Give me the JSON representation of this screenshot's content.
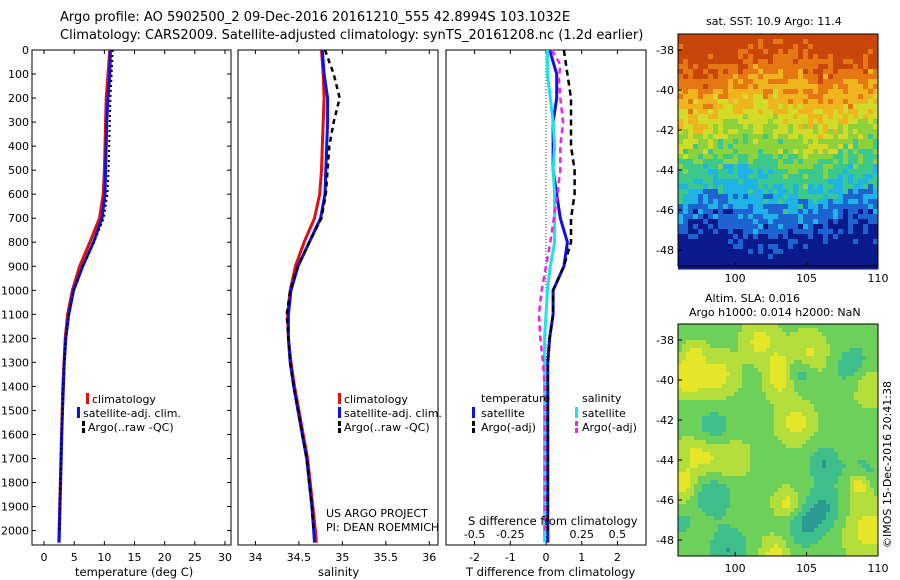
{
  "header": {
    "title_line1": "Argo profile: AO 5902500_2 09-Dec-2016 20161210_555 42.8994S 103.1032E",
    "title_line2": "Climatology: CARS2009. Satellite-adjusted climatology: synTS_20161208.nc (1.2d earlier)"
  },
  "map_top": {
    "title": "sat. SST: 10.9 Argo: 11.4",
    "yticks": [
      "-38",
      "-40",
      "-42",
      "-44",
      "-46",
      "-48"
    ],
    "xticks": [
      "100",
      "105",
      "110"
    ],
    "colors": [
      "#0a1a8c",
      "#1e64d0",
      "#20b4e6",
      "#3cc88c",
      "#8cd23c",
      "#d2dc28",
      "#f0b41e",
      "#e67814",
      "#c8460a"
    ]
  },
  "map_bottom": {
    "title_line1": "Altim. SLA: 0.016",
    "title_line2": "Argo h1000: 0.014 h2000: NaN",
    "yticks": [
      "-38",
      "-40",
      "-42",
      "-44",
      "-46",
      "-48"
    ],
    "xticks": [
      "100",
      "105",
      "110"
    ],
    "colors": [
      "#2e9a94",
      "#3fbf8c",
      "#6cd05a",
      "#b4de3c",
      "#e6e628"
    ]
  },
  "side_label": "©IMOS 15-Dec-2016 20:41:38",
  "credit": {
    "line1": "US ARGO PROJECT",
    "line2": "PI: DEAN ROEMMICH"
  },
  "colors": {
    "climatology": "#e01010",
    "satellite": "#1010e0",
    "argo": "#000000",
    "satellite_s": "#20e0e8",
    "argo_s": "#ee20ee"
  },
  "chart_data": [
    {
      "type": "line",
      "panel": "temperature",
      "xlabel": "temperature (deg C)",
      "xticks": [
        "0",
        "5",
        "10",
        "15",
        "20",
        "25",
        "30"
      ],
      "xlim": [
        -2,
        31
      ],
      "yticks": [
        "0",
        "100",
        "200",
        "300",
        "400",
        "500",
        "600",
        "700",
        "800",
        "900",
        "1000",
        "1100",
        "1200",
        "1300",
        "1400",
        "1500",
        "1600",
        "1700",
        "1800",
        "1900",
        "2000"
      ],
      "ylim": [
        0,
        2060
      ],
      "legend": [
        "climatology",
        "satellite-adj. clim.",
        "Argo(..raw -QC)"
      ],
      "series": [
        {
          "name": "climatology",
          "depth": [
            0,
            100,
            200,
            300,
            400,
            500,
            600,
            700,
            800,
            900,
            1000,
            1100,
            1200,
            1300,
            1400,
            1500,
            1600,
            1700,
            1800,
            1900,
            2000,
            2050
          ],
          "values": [
            10.9,
            10.6,
            10.3,
            10.2,
            10.1,
            10.0,
            9.8,
            9.2,
            7.6,
            5.9,
            4.7,
            3.9,
            3.5,
            3.3,
            3.1,
            3.0,
            2.9,
            2.8,
            2.7,
            2.6,
            2.5,
            2.45
          ]
        },
        {
          "name": "satellite-adj. clim.",
          "depth": [
            0,
            100,
            200,
            300,
            400,
            500,
            600,
            700,
            800,
            900,
            1000,
            1100,
            1200,
            1300,
            1400,
            1500,
            1600,
            1700,
            1800,
            1900,
            2000,
            2050
          ],
          "values": [
            11.0,
            10.9,
            10.6,
            10.4,
            10.3,
            10.2,
            10.1,
            9.6,
            8.2,
            6.4,
            4.9,
            4.1,
            3.6,
            3.35,
            3.2,
            3.05,
            2.95,
            2.85,
            2.75,
            2.65,
            2.55,
            2.5
          ]
        },
        {
          "name": "Argo(..raw -QC)",
          "depth": [
            0,
            100,
            200,
            300,
            400,
            500,
            600,
            700,
            800,
            900,
            1000,
            1100,
            1200,
            1300,
            1400,
            1500,
            1600,
            1700,
            1800,
            1900,
            2000
          ],
          "values": [
            11.4,
            11.2,
            11.0,
            10.9,
            10.8,
            10.7,
            10.5,
            9.9,
            8.3,
            6.4,
            4.9,
            4.1,
            3.6,
            3.35,
            3.2,
            3.05,
            2.95,
            2.85,
            2.75,
            2.65,
            2.55
          ]
        }
      ]
    },
    {
      "type": "line",
      "panel": "salinity",
      "xlabel": "salinity",
      "xticks": [
        "34",
        "34.5",
        "35",
        "35.5",
        "36"
      ],
      "xlim": [
        33.8,
        36.1
      ],
      "yticks": [],
      "ylim": [
        0,
        2060
      ],
      "legend": [
        "climatology",
        "satellite-adj. clim.",
        "Argo(..raw -QC)"
      ],
      "series": [
        {
          "name": "climatology",
          "depth": [
            0,
            100,
            200,
            300,
            400,
            500,
            600,
            700,
            800,
            900,
            1000,
            1100,
            1200,
            1300,
            1400,
            1500,
            1600,
            1700,
            1800,
            1900,
            2000,
            2050
          ],
          "values": [
            34.76,
            34.78,
            34.79,
            34.78,
            34.77,
            34.76,
            34.74,
            34.68,
            34.56,
            34.46,
            34.4,
            34.37,
            34.38,
            34.41,
            34.45,
            34.5,
            34.55,
            34.6,
            34.63,
            34.66,
            34.69,
            34.7
          ]
        },
        {
          "name": "satellite-adj. clim.",
          "depth": [
            0,
            100,
            200,
            300,
            400,
            500,
            600,
            700,
            800,
            900,
            1000,
            1100,
            1200,
            1300,
            1400,
            1500,
            1600,
            1700,
            1800,
            1900,
            2000,
            2050
          ],
          "values": [
            34.77,
            34.79,
            34.83,
            34.83,
            34.82,
            34.81,
            34.8,
            34.75,
            34.62,
            34.49,
            34.41,
            34.38,
            34.38,
            34.4,
            34.44,
            34.49,
            34.54,
            34.59,
            34.62,
            34.65,
            34.67,
            34.68
          ]
        },
        {
          "name": "Argo(..raw -QC)",
          "depth": [
            0,
            100,
            200,
            300,
            400,
            500,
            600,
            700,
            800,
            900,
            1000,
            1100,
            1200,
            1300,
            1400,
            1500,
            1600,
            1700,
            1800,
            1900,
            2000
          ],
          "values": [
            34.8,
            34.9,
            34.97,
            34.9,
            34.85,
            34.83,
            34.81,
            34.76,
            34.62,
            34.49,
            34.4,
            34.36,
            34.38,
            34.4,
            34.44,
            34.49,
            34.54,
            34.59,
            34.62,
            34.65,
            34.67
          ]
        }
      ]
    },
    {
      "type": "line",
      "panel": "difference",
      "xlabel": "T difference from climatology",
      "xlabel_top": "S difference from climatology",
      "xticks": [
        "-2",
        "-1",
        "0",
        "1",
        "2"
      ],
      "xticks_s": [
        "-0.5",
        "-0.25",
        "0",
        "0.25",
        "0.5"
      ],
      "xlim": [
        -2.8,
        2.8
      ],
      "yticks": [],
      "ylim": [
        0,
        2060
      ],
      "legend_titles": [
        "temperature",
        "salinity"
      ],
      "legend": [
        "satellite",
        "Argo(-adj)",
        "satellite",
        "Argo(-adj)"
      ],
      "series": [
        {
          "name": "satellite",
          "depth": [
            0,
            100,
            200,
            300,
            400,
            500,
            600,
            700,
            800,
            900,
            1000,
            1100,
            1200,
            1300,
            1400,
            1500,
            1600,
            1700,
            1800,
            1900,
            2000,
            2050
          ],
          "values": [
            0.1,
            0.3,
            0.3,
            0.2,
            0.2,
            0.2,
            0.3,
            0.4,
            0.6,
            0.5,
            0.2,
            0.2,
            0.1,
            0.05,
            0.05,
            0.05,
            0.05,
            0.05,
            0.05,
            0.05,
            0.05,
            0.05
          ]
        },
        {
          "name": "Argo(-adj)",
          "depth": [
            0,
            100,
            200,
            300,
            400,
            500,
            600,
            700,
            800,
            900,
            1000,
            1100,
            1200,
            1300,
            1400,
            1500,
            1600,
            1700,
            1800,
            1900,
            2000
          ],
          "values": [
            0.5,
            0.6,
            0.7,
            0.7,
            0.7,
            0.8,
            0.8,
            0.7,
            0.7,
            0.5,
            0.2,
            0.2,
            0.1,
            0.05,
            0.05,
            0.05,
            0.05,
            0.05,
            0.05,
            0.05,
            0.05
          ]
        },
        {
          "name": "satellite",
          "depth": [
            0,
            100,
            200,
            300,
            400,
            500,
            600,
            700,
            800,
            900,
            1000,
            1100,
            1200,
            1300,
            1400,
            1500,
            1600,
            1700,
            1800,
            1900,
            2000,
            2050
          ],
          "values": [
            0.01,
            0.01,
            0.03,
            0.05,
            0.06,
            0.05,
            0.06,
            0.06,
            0.06,
            0.03,
            0.01,
            0.0,
            -0.01,
            -0.01,
            -0.01,
            -0.01,
            -0.01,
            -0.01,
            -0.01,
            -0.01,
            -0.01,
            -0.01
          ]
        },
        {
          "name": "Argo(-adj)",
          "depth": [
            0,
            60,
            120,
            200,
            300,
            400,
            500,
            600,
            800,
            1000,
            1100,
            1200,
            1300,
            1400,
            1500,
            1600,
            1700,
            1800,
            1900,
            2000
          ],
          "values": [
            0.04,
            0.1,
            0.09,
            0.1,
            0.12,
            0.1,
            0.1,
            0.08,
            0.03,
            -0.03,
            -0.05,
            -0.04,
            -0.02,
            -0.01,
            -0.01,
            -0.01,
            -0.01,
            -0.01,
            -0.01,
            -0.01
          ]
        }
      ]
    }
  ]
}
